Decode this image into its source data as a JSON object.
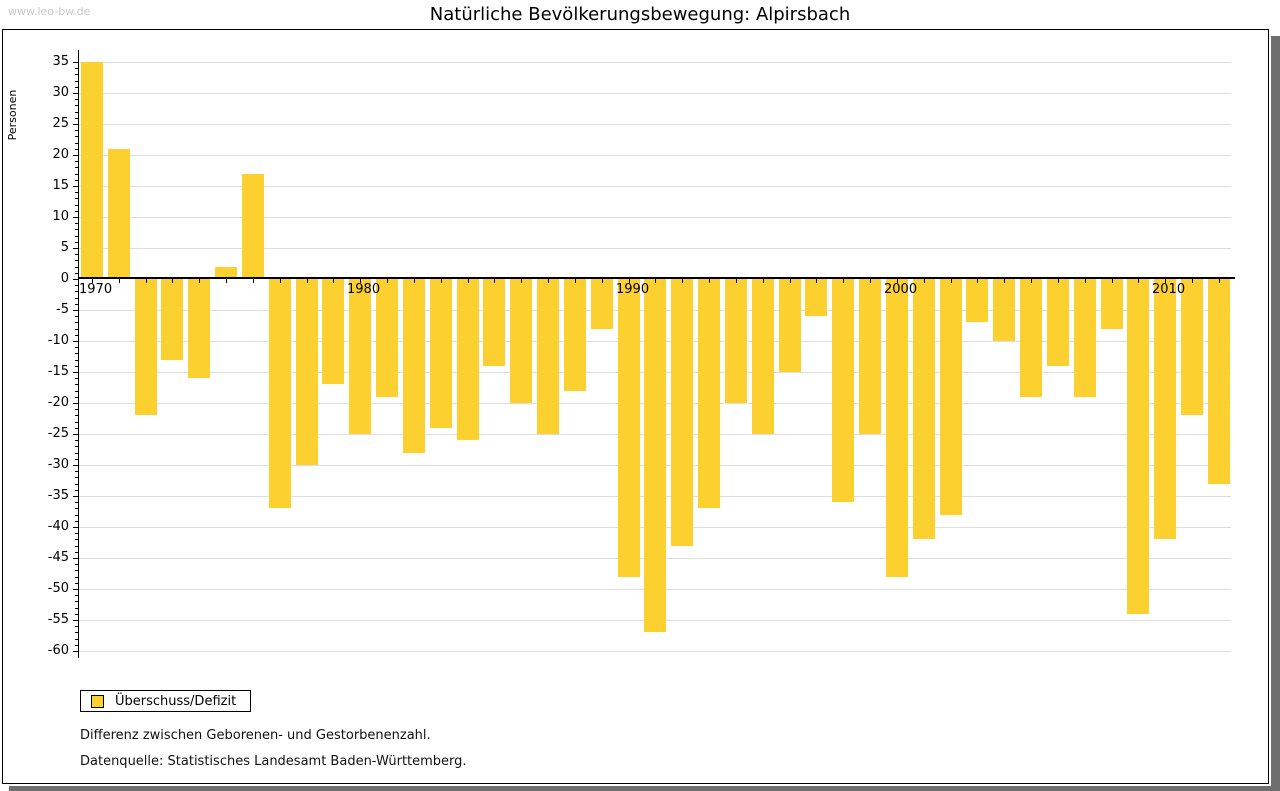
{
  "header": {
    "watermark": "www.leo-bw.de",
    "title": "Natürliche Bevölkerungsbewegung: Alpirsbach"
  },
  "legend": {
    "label": "Überschuss/Defizit"
  },
  "footnotes": {
    "line1": "Differenz zwischen Geborenen- und Gestorbenenzahl.",
    "line2": "Datenquelle: Statistisches Landesamt Baden-Württemberg."
  },
  "colors": {
    "bar": "#FCD02E",
    "gridline": "#dedede",
    "axis": "#000000",
    "shadow": "#6e6e6e",
    "watermark": "#c8c8c8"
  },
  "chart_data": {
    "type": "bar",
    "title": "Natürliche Bevölkerungsbewegung: Alpirsbach",
    "xlabel": "",
    "ylabel": "Personen",
    "series_name": "Überschuss/Defizit",
    "x": [
      1970,
      1971,
      1972,
      1973,
      1974,
      1975,
      1976,
      1977,
      1978,
      1979,
      1980,
      1981,
      1982,
      1983,
      1984,
      1985,
      1986,
      1987,
      1988,
      1989,
      1990,
      1991,
      1992,
      1993,
      1994,
      1995,
      1996,
      1997,
      1998,
      1999,
      2000,
      2001,
      2002,
      2003,
      2004,
      2005,
      2006,
      2007,
      2008,
      2009,
      2010,
      2011,
      2012
    ],
    "values": [
      35,
      21,
      -22,
      -13,
      -16,
      2,
      17,
      -37,
      -30,
      -17,
      -25,
      -19,
      -28,
      -24,
      -26,
      -14,
      -20,
      -25,
      -18,
      -8,
      -48,
      -57,
      -43,
      -37,
      -20,
      -25,
      -15,
      -6,
      -36,
      -25,
      -48,
      -42,
      -38,
      -7,
      -10,
      -19,
      -14,
      -19,
      -8,
      -54,
      -42,
      -22,
      -33
    ],
    "ylim": [
      -60,
      35
    ],
    "ytick_step": 5,
    "ytick_minor_step": 1,
    "xtick_labels": [
      1970,
      1980,
      1990,
      2000,
      2010
    ],
    "grid": "horizontal",
    "legend_position": "bottom-left"
  }
}
